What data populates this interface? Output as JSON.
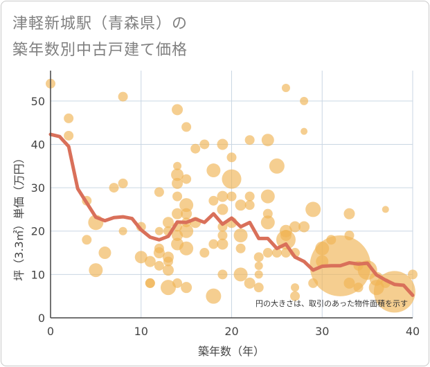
{
  "title_line1": "津軽新城駅（青森県）の",
  "title_line2": "築年数別中古戸建て価格",
  "chart_data": {
    "type": "scatter",
    "xlabel": "築年数（年）",
    "ylabel": "坪（3.3㎡）単価（万円）",
    "xlim": [
      0,
      40
    ],
    "ylim": [
      0,
      57
    ],
    "xticks": [
      "0",
      "10",
      "20",
      "30",
      "40"
    ],
    "yticks": [
      "0",
      "10",
      "20",
      "30",
      "40",
      "50"
    ],
    "grid": true,
    "note": "円の大きさは、取引のあった物件面積を示す",
    "colors": {
      "bubble": "#f0b455",
      "line": "#d9705a",
      "grid": "#c9d6e3",
      "axis": "#444444"
    },
    "trend_line": {
      "x": [
        0,
        1,
        2,
        3,
        4,
        5,
        6,
        7,
        8,
        9,
        10,
        11,
        12,
        13,
        14,
        15,
        16,
        17,
        18,
        19,
        20,
        21,
        22,
        23,
        24,
        25,
        26,
        27,
        28,
        29,
        30,
        31,
        32,
        33,
        34,
        35,
        36,
        37,
        38,
        39,
        40
      ],
      "y": [
        42.3,
        41.8,
        39.5,
        29.8,
        26.5,
        23.2,
        22.4,
        23.1,
        23.3,
        22.9,
        20.3,
        18.6,
        18.0,
        18.8,
        22.1,
        22.0,
        22.8,
        22.0,
        24.0,
        21.6,
        23.0,
        21.0,
        22.0,
        18.3,
        18.3,
        16.0,
        17.0,
        14.0,
        13.0,
        11.0,
        11.9,
        12.0,
        12.0,
        12.7,
        12.4,
        12.6,
        9.9,
        8.7,
        7.7,
        7.5,
        5.2
      ]
    },
    "bubbles": [
      {
        "x": 0,
        "y": 54,
        "r": 7
      },
      {
        "x": 2,
        "y": 46,
        "r": 7
      },
      {
        "x": 2,
        "y": 42,
        "r": 7
      },
      {
        "x": 4,
        "y": 27,
        "r": 7
      },
      {
        "x": 4,
        "y": 18,
        "r": 7
      },
      {
        "x": 5,
        "y": 22,
        "r": 11
      },
      {
        "x": 5,
        "y": 11,
        "r": 10
      },
      {
        "x": 6,
        "y": 15,
        "r": 9
      },
      {
        "x": 7,
        "y": 30,
        "r": 7
      },
      {
        "x": 8,
        "y": 51,
        "r": 7
      },
      {
        "x": 8,
        "y": 31,
        "r": 7
      },
      {
        "x": 8,
        "y": 20,
        "r": 6
      },
      {
        "x": 10,
        "y": 21,
        "r": 7
      },
      {
        "x": 10,
        "y": 14,
        "r": 9
      },
      {
        "x": 11,
        "y": 8,
        "r": 7
      },
      {
        "x": 11,
        "y": 13,
        "r": 8
      },
      {
        "x": 11,
        "y": 8,
        "r": 7
      },
      {
        "x": 12,
        "y": 29,
        "r": 7
      },
      {
        "x": 12,
        "y": 16,
        "r": 7
      },
      {
        "x": 12,
        "y": 15,
        "r": 8
      },
      {
        "x": 12,
        "y": 12,
        "r": 7
      },
      {
        "x": 12,
        "y": 20,
        "r": 6
      },
      {
        "x": 13,
        "y": 22,
        "r": 8
      },
      {
        "x": 13,
        "y": 20,
        "r": 7
      },
      {
        "x": 13,
        "y": 14,
        "r": 8
      },
      {
        "x": 13,
        "y": 13,
        "r": 7
      },
      {
        "x": 13,
        "y": 11,
        "r": 8
      },
      {
        "x": 13,
        "y": 7,
        "r": 11
      },
      {
        "x": 14,
        "y": 48,
        "r": 8
      },
      {
        "x": 14,
        "y": 35,
        "r": 6
      },
      {
        "x": 14,
        "y": 33,
        "r": 9
      },
      {
        "x": 14,
        "y": 31,
        "r": 8
      },
      {
        "x": 14,
        "y": 28,
        "r": 7
      },
      {
        "x": 14,
        "y": 24,
        "r": 8
      },
      {
        "x": 14,
        "y": 21,
        "r": 7
      },
      {
        "x": 14,
        "y": 19,
        "r": 8
      },
      {
        "x": 14,
        "y": 17,
        "r": 9
      },
      {
        "x": 14,
        "y": 8,
        "r": 7
      },
      {
        "x": 15,
        "y": 44,
        "r": 7
      },
      {
        "x": 15,
        "y": 32,
        "r": 7
      },
      {
        "x": 15,
        "y": 26,
        "r": 10
      },
      {
        "x": 15,
        "y": 24,
        "r": 8
      },
      {
        "x": 15,
        "y": 22,
        "r": 7
      },
      {
        "x": 15,
        "y": 20,
        "r": 10
      },
      {
        "x": 15,
        "y": 16,
        "r": 10
      },
      {
        "x": 15,
        "y": 7,
        "r": 8
      },
      {
        "x": 16,
        "y": 39,
        "r": 7
      },
      {
        "x": 16,
        "y": 22,
        "r": 8
      },
      {
        "x": 17,
        "y": 40,
        "r": 7
      },
      {
        "x": 17,
        "y": 15,
        "r": 7
      },
      {
        "x": 18,
        "y": 34,
        "r": 10
      },
      {
        "x": 18,
        "y": 27,
        "r": 7
      },
      {
        "x": 18,
        "y": 17,
        "r": 7
      },
      {
        "x": 18,
        "y": 5,
        "r": 11
      },
      {
        "x": 19,
        "y": 40,
        "r": 8
      },
      {
        "x": 19,
        "y": 28,
        "r": 8
      },
      {
        "x": 19,
        "y": 25,
        "r": 8
      },
      {
        "x": 19,
        "y": 21,
        "r": 7
      },
      {
        "x": 19,
        "y": 19,
        "r": 7
      },
      {
        "x": 19,
        "y": 17,
        "r": 8
      },
      {
        "x": 19,
        "y": 10,
        "r": 7
      },
      {
        "x": 20,
        "y": 37,
        "r": 7
      },
      {
        "x": 20,
        "y": 32,
        "r": 14
      },
      {
        "x": 20,
        "y": 28,
        "r": 7
      },
      {
        "x": 20,
        "y": 22,
        "r": 8
      },
      {
        "x": 21,
        "y": 26,
        "r": 8
      },
      {
        "x": 21,
        "y": 19,
        "r": 10
      },
      {
        "x": 21,
        "y": 16,
        "r": 7
      },
      {
        "x": 21,
        "y": 10,
        "r": 10
      },
      {
        "x": 22,
        "y": 41,
        "r": 7
      },
      {
        "x": 22,
        "y": 28,
        "r": 7
      },
      {
        "x": 22,
        "y": 26,
        "r": 7
      },
      {
        "x": 22,
        "y": 8,
        "r": 8
      },
      {
        "x": 23,
        "y": 14,
        "r": 7
      },
      {
        "x": 23,
        "y": 12,
        "r": 6
      },
      {
        "x": 23,
        "y": 10,
        "r": 6
      },
      {
        "x": 23,
        "y": 7,
        "r": 7
      },
      {
        "x": 24,
        "y": 41,
        "r": 9
      },
      {
        "x": 24,
        "y": 28,
        "r": 10
      },
      {
        "x": 24,
        "y": 24,
        "r": 7
      },
      {
        "x": 24,
        "y": 22,
        "r": 10
      },
      {
        "x": 24,
        "y": 15,
        "r": 7
      },
      {
        "x": 25,
        "y": 35,
        "r": 11
      },
      {
        "x": 25,
        "y": 15,
        "r": 7
      },
      {
        "x": 26,
        "y": 53,
        "r": 6
      },
      {
        "x": 26,
        "y": 20,
        "r": 9
      },
      {
        "x": 26,
        "y": 19,
        "r": 8
      },
      {
        "x": 26,
        "y": 18,
        "r": 14
      },
      {
        "x": 26,
        "y": 15,
        "r": 7
      },
      {
        "x": 27,
        "y": 21,
        "r": 8
      },
      {
        "x": 27,
        "y": 15,
        "r": 7
      },
      {
        "x": 27,
        "y": 7,
        "r": 6
      },
      {
        "x": 27,
        "y": 5,
        "r": 7
      },
      {
        "x": 28,
        "y": 50,
        "r": 6
      },
      {
        "x": 28,
        "y": 43,
        "r": 5
      },
      {
        "x": 28,
        "y": 21,
        "r": 8
      },
      {
        "x": 29,
        "y": 25,
        "r": 11
      },
      {
        "x": 29,
        "y": 8,
        "r": 7
      },
      {
        "x": 30,
        "y": 16,
        "r": 10
      },
      {
        "x": 30,
        "y": 13,
        "r": 9
      },
      {
        "x": 31,
        "y": 18,
        "r": 7
      },
      {
        "x": 32,
        "y": 12,
        "r": 44
      },
      {
        "x": 33,
        "y": 24,
        "r": 8
      },
      {
        "x": 33,
        "y": 19,
        "r": 7
      },
      {
        "x": 33,
        "y": 8,
        "r": 8
      },
      {
        "x": 34,
        "y": 12,
        "r": 7
      },
      {
        "x": 34,
        "y": 7,
        "r": 7
      },
      {
        "x": 35,
        "y": 11,
        "r": 14
      },
      {
        "x": 36,
        "y": 9,
        "r": 10
      },
      {
        "x": 36,
        "y": 7,
        "r": 11
      },
      {
        "x": 37,
        "y": 25,
        "r": 5
      },
      {
        "x": 37,
        "y": 8,
        "r": 7
      },
      {
        "x": 38,
        "y": 6,
        "r": 30
      },
      {
        "x": 40,
        "y": 10,
        "r": 7
      }
    ]
  }
}
